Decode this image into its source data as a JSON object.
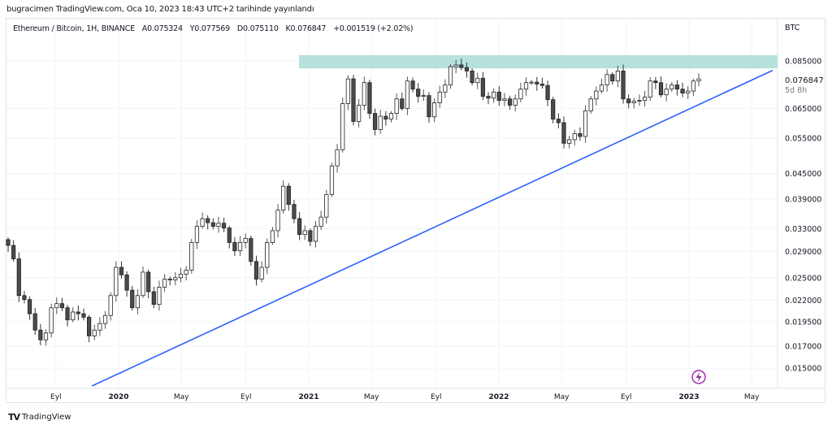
{
  "header": {
    "published": "bugracimen TradingView.com, Oca 10, 2023 18:43 UTC+2 tarihinde yayınlandı"
  },
  "legend": {
    "symbol": "Ethereum / Bitcoin, 1H, BINANCE",
    "open": "A0.075324",
    "high": "Y0.077569",
    "low": "D0.075110",
    "close": "K0.076847",
    "change": "+0.001519 (+2.02%)"
  },
  "footer": {
    "brand": "TradingView"
  },
  "icons": {
    "lightning": "lightning-icon",
    "logo": "tradingview-logo"
  },
  "colors": {
    "up_body": "#ffffff",
    "down_body": "#4a4a4f",
    "wick": "#131722",
    "trendline": "#2962ff",
    "zone": "#b2dfdb",
    "event_icon": "#9c27b0"
  },
  "chart_data": {
    "type": "candlestick",
    "title": "",
    "currency": "BTC",
    "y_scale": "log",
    "ylim": [
      0.0135,
      0.1
    ],
    "grid": true,
    "y_ticks": [
      "0.085000",
      "0.065000",
      "0.055000",
      "0.045000",
      "0.039000",
      "0.033000",
      "0.029000",
      "0.025000",
      "0.022000",
      "0.019500",
      "0.017000",
      "0.015000"
    ],
    "x_ticks": [
      {
        "label": "Eyl",
        "date": 2019.67,
        "bold": false
      },
      {
        "label": "2020",
        "date": 2020.0,
        "bold": true
      },
      {
        "label": "May",
        "date": 2020.33,
        "bold": false
      },
      {
        "label": "Eyl",
        "date": 2020.67,
        "bold": false
      },
      {
        "label": "2021",
        "date": 2021.0,
        "bold": true
      },
      {
        "label": "May",
        "date": 2021.33,
        "bold": false
      },
      {
        "label": "Eyl",
        "date": 2021.67,
        "bold": false
      },
      {
        "label": "2022",
        "date": 2022.0,
        "bold": true
      },
      {
        "label": "May",
        "date": 2022.33,
        "bold": false
      },
      {
        "label": "Eyl",
        "date": 2022.67,
        "bold": false
      },
      {
        "label": "2023",
        "date": 2023.0,
        "bold": true
      },
      {
        "label": "May",
        "date": 2023.33,
        "bold": false
      }
    ],
    "last_price": "0.076847",
    "countdown": "5d 8h",
    "first_open": 0.031,
    "closes": [
      0.03,
      0.0278,
      0.0226,
      0.0221,
      0.0204,
      0.0186,
      0.0176,
      0.0183,
      0.0211,
      0.0216,
      0.0211,
      0.0197,
      0.0206,
      0.0204,
      0.02,
      0.018,
      0.0186,
      0.0193,
      0.0202,
      0.0226,
      0.0265,
      0.0254,
      0.0233,
      0.0211,
      0.0226,
      0.0258,
      0.0231,
      0.0215,
      0.0237,
      0.0248,
      0.0247,
      0.025,
      0.0255,
      0.0261,
      0.0305,
      0.0334,
      0.0349,
      0.0341,
      0.0334,
      0.034,
      0.0331,
      0.0305,
      0.0291,
      0.0305,
      0.0312,
      0.0274,
      0.0248,
      0.0265,
      0.0305,
      0.0326,
      0.0366,
      0.0419,
      0.0378,
      0.0349,
      0.0319,
      0.0326,
      0.0307,
      0.0334,
      0.0352,
      0.04,
      0.047,
      0.0515,
      0.0668,
      0.0768,
      0.0604,
      0.0662,
      0.0752,
      0.0632,
      0.0577,
      0.0622,
      0.0612,
      0.0632,
      0.0686,
      0.065,
      0.0759,
      0.0725,
      0.0696,
      0.0699,
      0.062,
      0.0671,
      0.0713,
      0.0742,
      0.0823,
      0.0831,
      0.0819,
      0.0803,
      0.0752,
      0.0771,
      0.0696,
      0.0689,
      0.0713,
      0.068,
      0.0686,
      0.0662,
      0.0686,
      0.0725,
      0.0752,
      0.0754,
      0.0746,
      0.074,
      0.0683,
      0.0612,
      0.06,
      0.0534,
      0.0545,
      0.0564,
      0.0555,
      0.0641,
      0.0686,
      0.0717,
      0.0742,
      0.0787,
      0.0759,
      0.0803,
      0.0686,
      0.0671,
      0.0677,
      0.068,
      0.0693,
      0.0759,
      0.0752,
      0.0702,
      0.0725,
      0.0742,
      0.0725,
      0.0709,
      0.0717,
      0.0759,
      0.0768
    ],
    "resistance_zone": {
      "from_date": 2021.0,
      "low": 0.0815,
      "high": 0.0878
    },
    "trendline": {
      "start": {
        "date": 2019.86,
        "price": 0.01357
      },
      "end": {
        "date": 2023.44,
        "price": 0.0806
      }
    }
  }
}
